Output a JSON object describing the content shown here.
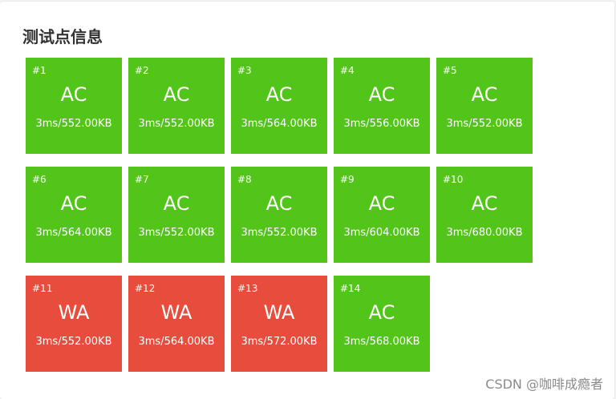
{
  "title": "测试点信息",
  "colors": {
    "ac": "#52c41a",
    "wa": "#e74c3c"
  },
  "cases": [
    {
      "num": "#1",
      "status": "AC",
      "stats": "3ms/552.00KB"
    },
    {
      "num": "#2",
      "status": "AC",
      "stats": "3ms/552.00KB"
    },
    {
      "num": "#3",
      "status": "AC",
      "stats": "3ms/564.00KB"
    },
    {
      "num": "#4",
      "status": "AC",
      "stats": "3ms/556.00KB"
    },
    {
      "num": "#5",
      "status": "AC",
      "stats": "3ms/552.00KB"
    },
    {
      "num": "#6",
      "status": "AC",
      "stats": "3ms/564.00KB"
    },
    {
      "num": "#7",
      "status": "AC",
      "stats": "3ms/552.00KB"
    },
    {
      "num": "#8",
      "status": "AC",
      "stats": "3ms/552.00KB"
    },
    {
      "num": "#9",
      "status": "AC",
      "stats": "3ms/604.00KB"
    },
    {
      "num": "#10",
      "status": "AC",
      "stats": "3ms/680.00KB"
    },
    {
      "num": "#11",
      "status": "WA",
      "stats": "3ms/552.00KB"
    },
    {
      "num": "#12",
      "status": "WA",
      "stats": "3ms/564.00KB"
    },
    {
      "num": "#13",
      "status": "WA",
      "stats": "3ms/572.00KB"
    },
    {
      "num": "#14",
      "status": "AC",
      "stats": "3ms/568.00KB"
    }
  ],
  "watermark": "CSDN @咖啡成瘾者"
}
